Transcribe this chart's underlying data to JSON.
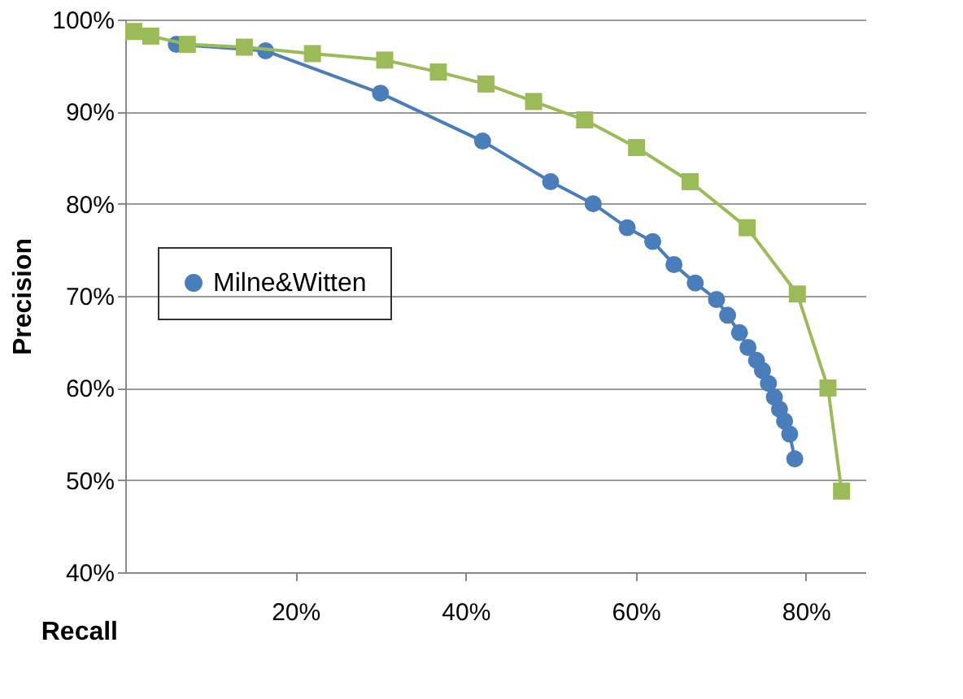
{
  "chart_data": {
    "type": "line",
    "xlabel": "Recall",
    "ylabel": "Precision",
    "xlim": [
      0,
      87
    ],
    "xticks": [
      {
        "value": 20,
        "label": "20%"
      },
      {
        "value": 40,
        "label": "40%"
      },
      {
        "value": 60,
        "label": "60%"
      },
      {
        "value": 80,
        "label": "80%"
      }
    ],
    "ylim": [
      40,
      100
    ],
    "yticks": [
      {
        "value": 40,
        "label": "40%"
      },
      {
        "value": 50,
        "label": "50%"
      },
      {
        "value": 60,
        "label": "60%"
      },
      {
        "value": 70,
        "label": "70%"
      },
      {
        "value": 80,
        "label": "80%"
      },
      {
        "value": 90,
        "label": "90%"
      },
      {
        "value": 100,
        "label": "100%"
      }
    ],
    "grid": "y",
    "legend": "left",
    "series": [
      {
        "name": "Milne&Witten",
        "color": "#4a7ebb",
        "marker": "circle",
        "x": [
          6,
          16.5,
          30,
          42,
          50,
          55,
          59,
          62,
          64.5,
          67,
          69.5,
          70.8,
          72.2,
          73.2,
          74.2,
          74.9,
          75.6,
          76.3,
          76.9,
          77.5,
          78.1,
          78.7
        ],
        "values": [
          97.3,
          96.6,
          92,
          86.8,
          82.4,
          80,
          77.4,
          75.9,
          73.4,
          71.4,
          69.6,
          67.9,
          66,
          64.4,
          63,
          61.9,
          60.5,
          59,
          57.7,
          56.4,
          55,
          52.3
        ]
      },
      {
        "color": "#9bbb59",
        "marker": "square",
        "x": [
          1,
          3,
          7.3,
          14,
          22,
          30.5,
          36.8,
          42.4,
          48,
          54,
          60.1,
          66.4,
          73.1,
          79,
          82.6,
          84.2
        ],
        "values": [
          98.7,
          98.2,
          97.3,
          97,
          96.3,
          95.6,
          94.3,
          93,
          91.1,
          89.1,
          86.1,
          82.4,
          77.4,
          70.2,
          60,
          48.8
        ]
      }
    ]
  }
}
